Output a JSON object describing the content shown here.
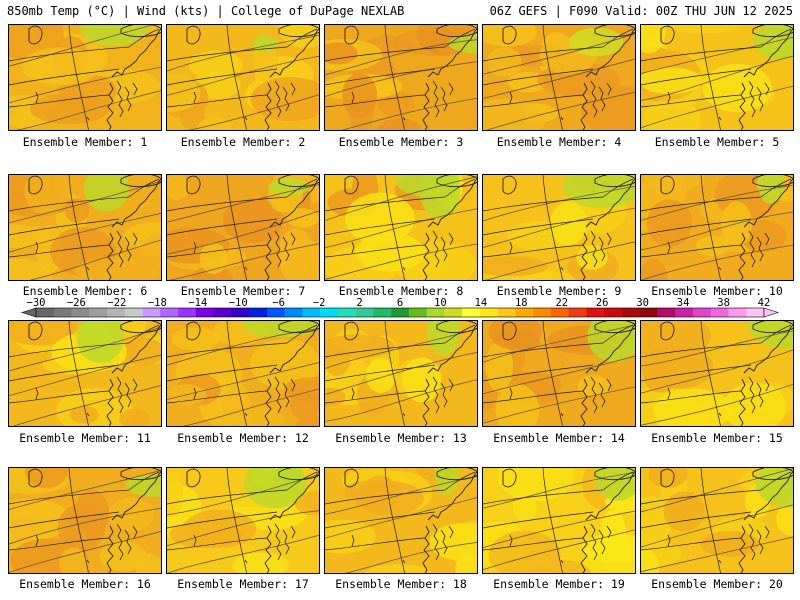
{
  "header": {
    "left": "850mb Temp (°C) | Wind (kts) | College of DuPage NEXLAB",
    "right": "06Z GEFS | F090 Valid: 00Z THU JUN 12 2025"
  },
  "panel_label_prefix": "Ensemble Member: ",
  "members": [
    {
      "label": "Ensemble Member: 1",
      "base": "#f2b21c",
      "patches": [
        [
          "#f5c11a",
          0.55
        ],
        [
          "#ec9f1e",
          0.35
        ],
        [
          "#f5c11a",
          0.2
        ],
        [
          "#bcd82a",
          0.05
        ]
      ]
    },
    {
      "label": "Ensemble Member: 2",
      "base": "#f3b81c",
      "patches": [
        [
          "#f7cf18",
          0.5
        ],
        [
          "#eea51f",
          0.3
        ],
        [
          "#f5c11a",
          0.3
        ],
        [
          "#bcd82a",
          0.03
        ]
      ]
    },
    {
      "label": "Ensemble Member: 3",
      "base": "#eea81e",
      "patches": [
        [
          "#eb9a20",
          0.5
        ],
        [
          "#f5c11a",
          0.3
        ],
        [
          "#e99320",
          0.35
        ],
        [
          "#bcd82a",
          0.04
        ]
      ]
    },
    {
      "label": "Ensemble Member: 4",
      "base": "#efa91e",
      "patches": [
        [
          "#f5c11a",
          0.45
        ],
        [
          "#eb9a20",
          0.4
        ],
        [
          "#f3b81c",
          0.3
        ],
        [
          "#d0dc24",
          0.03
        ]
      ]
    },
    {
      "label": "Ensemble Member: 5",
      "base": "#f5c21a",
      "patches": [
        [
          "#f7d017",
          0.55
        ],
        [
          "#f2b21c",
          0.3
        ],
        [
          "#f9e016",
          0.25
        ],
        [
          "#bcd82a",
          0.03
        ]
      ]
    },
    {
      "label": "Ensemble Member: 6",
      "base": "#f0ad1e",
      "patches": [
        [
          "#f5c11a",
          0.45
        ],
        [
          "#eb9a20",
          0.35
        ],
        [
          "#f2b21c",
          0.3
        ],
        [
          "#bcd82a",
          0.03
        ]
      ]
    },
    {
      "label": "Ensemble Member: 7",
      "base": "#eea51f",
      "patches": [
        [
          "#f3b81c",
          0.45
        ],
        [
          "#e99320",
          0.4
        ],
        [
          "#f5c11a",
          0.25
        ],
        [
          "#bcd82a",
          0.03
        ]
      ]
    },
    {
      "label": "Ensemble Member: 8",
      "base": "#f5c21a",
      "patches": [
        [
          "#f7cf18",
          0.5
        ],
        [
          "#eb9a20",
          0.3
        ],
        [
          "#f9e016",
          0.25
        ],
        [
          "#bcd82a",
          0.15
        ]
      ]
    },
    {
      "label": "Ensemble Member: 9",
      "base": "#f5c11a",
      "patches": [
        [
          "#f7d017",
          0.5
        ],
        [
          "#f0ad1e",
          0.3
        ],
        [
          "#f9e016",
          0.2
        ],
        [
          "#bcd82a",
          0.03
        ]
      ]
    },
    {
      "label": "Ensemble Member: 10",
      "base": "#f0ab1e",
      "patches": [
        [
          "#f3b81c",
          0.45
        ],
        [
          "#eb9a20",
          0.35
        ],
        [
          "#f5c11a",
          0.3
        ],
        [
          "#bcd82a",
          0.03
        ]
      ]
    },
    {
      "label": "Ensemble Member: 11",
      "base": "#f3b81c",
      "patches": [
        [
          "#f7cf18",
          0.5
        ],
        [
          "#f0ad1e",
          0.35
        ],
        [
          "#f9e016",
          0.2
        ],
        [
          "#bcd82a",
          0.03
        ]
      ]
    },
    {
      "label": "Ensemble Member: 12",
      "base": "#f0ad1e",
      "patches": [
        [
          "#f5c11a",
          0.45
        ],
        [
          "#eb9a20",
          0.35
        ],
        [
          "#f3b81c",
          0.3
        ],
        [
          "#bcd82a",
          0.03
        ]
      ]
    },
    {
      "label": "Ensemble Member: 13",
      "base": "#f3b81c",
      "patches": [
        [
          "#f7cf18",
          0.5
        ],
        [
          "#f0ad1e",
          0.35
        ],
        [
          "#f9e016",
          0.2
        ],
        [
          "#bcd82a",
          0.03
        ]
      ]
    },
    {
      "label": "Ensemble Member: 14",
      "base": "#efa91e",
      "patches": [
        [
          "#eb9a20",
          0.5
        ],
        [
          "#f5c11a",
          0.3
        ],
        [
          "#e99320",
          0.3
        ],
        [
          "#bcd82a",
          0.1
        ]
      ]
    },
    {
      "label": "Ensemble Member: 15",
      "base": "#f5c11a",
      "patches": [
        [
          "#f7d017",
          0.5
        ],
        [
          "#f0ad1e",
          0.3
        ],
        [
          "#f9e016",
          0.25
        ],
        [
          "#bcd82a",
          0.03
        ]
      ]
    },
    {
      "label": "Ensemble Member: 16",
      "base": "#f0ad1e",
      "patches": [
        [
          "#f5c11a",
          0.45
        ],
        [
          "#eb9a20",
          0.35
        ],
        [
          "#f3b81c",
          0.3
        ],
        [
          "#bcd82a",
          0.03
        ]
      ]
    },
    {
      "label": "Ensemble Member: 17",
      "base": "#f6c91a",
      "patches": [
        [
          "#f9e016",
          0.5
        ],
        [
          "#f2b21c",
          0.3
        ],
        [
          "#f7d017",
          0.25
        ],
        [
          "#bcd82a",
          0.15
        ]
      ]
    },
    {
      "label": "Ensemble Member: 18",
      "base": "#f3b81c",
      "patches": [
        [
          "#f7cf18",
          0.5
        ],
        [
          "#f0ad1e",
          0.35
        ],
        [
          "#f9e016",
          0.2
        ],
        [
          "#bcd82a",
          0.1
        ]
      ]
    },
    {
      "label": "Ensemble Member: 19",
      "base": "#f7d017",
      "patches": [
        [
          "#f9e016",
          0.5
        ],
        [
          "#f3b81c",
          0.3
        ],
        [
          "#fbe818",
          0.25
        ],
        [
          "#bcd82a",
          0.1
        ]
      ]
    },
    {
      "label": "Ensemble Member: 20",
      "base": "#f5c11a",
      "patches": [
        [
          "#f7d017",
          0.5
        ],
        [
          "#f0ad1e",
          0.3
        ],
        [
          "#f9e016",
          0.25
        ],
        [
          "#bcd82a",
          0.03
        ]
      ]
    }
  ],
  "colorbar": {
    "tick_labels": [
      "−30",
      "−26",
      "−22",
      "−18",
      "−14",
      "−10",
      "−6",
      "−2",
      "2",
      "6",
      "10",
      "14",
      "18",
      "22",
      "26",
      "30",
      "34",
      "38",
      "42"
    ],
    "colors": [
      "#666666",
      "#7a7a7a",
      "#8c8c8c",
      "#a0a0a0",
      "#b4b4b4",
      "#c8c8c8",
      "#cc99ff",
      "#b266ff",
      "#9933ff",
      "#7a00e6",
      "#5c00cc",
      "#3300cc",
      "#0022dd",
      "#0055ff",
      "#0088ff",
      "#00bbff",
      "#00ddee",
      "#22ddbb",
      "#33cc99",
      "#22bb66",
      "#229933",
      "#66bb22",
      "#a8d82a",
      "#d0dc24",
      "#ffff33",
      "#ffe81a",
      "#ffc61a",
      "#ffa800",
      "#ff8c00",
      "#ff6400",
      "#f03c14",
      "#dd1111",
      "#c80a0a",
      "#aa0a0a",
      "#8c0a0a",
      "#b40a6e",
      "#cc22aa",
      "#e044cc",
      "#f066e0",
      "#ff99ee",
      "#ffc4f4"
    ]
  }
}
